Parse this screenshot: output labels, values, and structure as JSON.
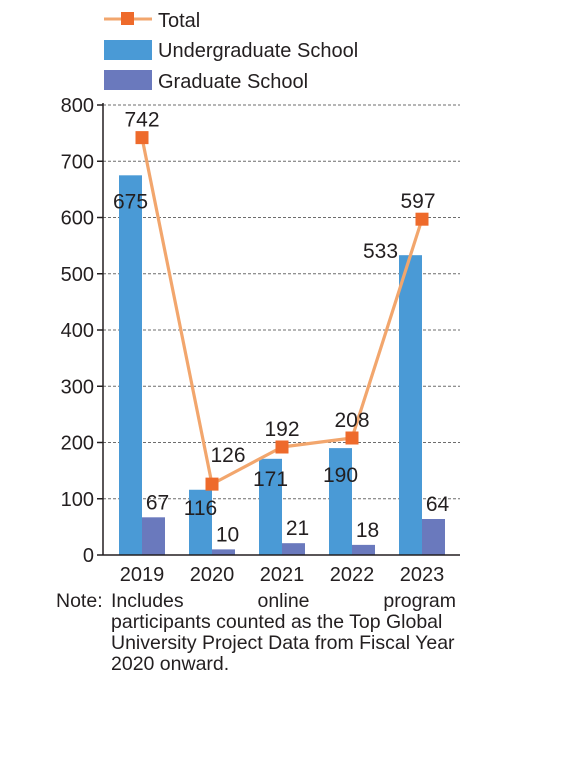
{
  "chart_data": {
    "type": "bar",
    "categories": [
      "2019",
      "2020",
      "2021",
      "2022",
      "2023"
    ],
    "series": [
      {
        "name": "Undergraduate School",
        "kind": "bar",
        "color": "#4a9ad6",
        "values": [
          675,
          116,
          171,
          190,
          533
        ]
      },
      {
        "name": "Graduate School",
        "kind": "bar",
        "color": "#6a79bd",
        "values": [
          67,
          10,
          21,
          18,
          64
        ]
      },
      {
        "name": "Total",
        "kind": "line",
        "color": "#f2a66d",
        "marker_color": "#ee6a2b",
        "values": [
          742,
          126,
          192,
          208,
          597
        ]
      }
    ],
    "yticks": [
      "0",
      "100",
      "200",
      "300",
      "400",
      "500",
      "600",
      "700",
      "800"
    ],
    "ylim": [
      0,
      800
    ],
    "grid": "horizontal dashed",
    "legend": "top-left"
  },
  "note": {
    "key": "Note:",
    "first_line": "Includes online program",
    "rest": "participants counted as the Top Global University Project Data from Fiscal Year 2020 onward."
  }
}
